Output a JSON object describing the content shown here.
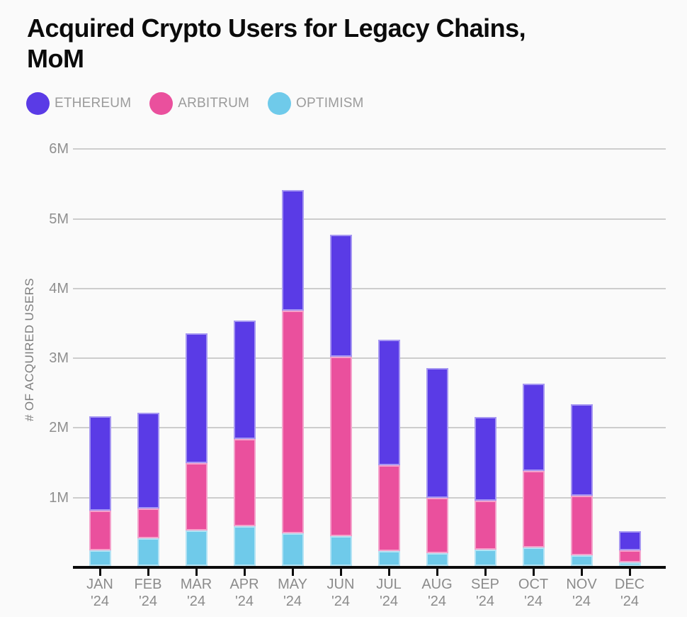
{
  "header": {
    "title": "Acquired Crypto Users for Legacy Chains, MoM"
  },
  "colors": {
    "background": "#fafafa",
    "title_text": "#0b0b0b",
    "legend_text": "#9b9b9b",
    "axis_tick_text": "#8b8b8b",
    "y_axis_title_text": "#7e7e7e",
    "gridline": "#cdcdcd",
    "axis_line": "#0b0b0b",
    "ethereum": "#5a3be6",
    "arbitrum": "#ea509d",
    "optimism": "#6fcaea"
  },
  "chart_data": {
    "type": "bar",
    "stacked": true,
    "title": "Acquired Crypto Users for Legacy Chains, MoM",
    "ylabel": "# OF ACQUIRED USERS",
    "xlabel": "",
    "ylim": [
      0,
      6000000
    ],
    "grid": "horizontal",
    "legend_position": "top-left",
    "value_units": "millions of users",
    "categories": [
      "JAN",
      "FEB",
      "MAR",
      "APR",
      "MAY",
      "JUN",
      "JUL",
      "AUG",
      "SEP",
      "OCT",
      "NOV",
      "DEC"
    ],
    "category_year_suffix": "'24",
    "yticks": [
      {
        "label": "1M",
        "value": 1
      },
      {
        "label": "2M",
        "value": 2
      },
      {
        "label": "3M",
        "value": 3
      },
      {
        "label": "4M",
        "value": 4
      },
      {
        "label": "5M",
        "value": 5
      },
      {
        "label": "6M",
        "value": 6
      }
    ],
    "series": [
      {
        "name": "ETHEREUM",
        "color": "#5a3be6",
        "color_light": "#a697f2",
        "values_millions": [
          1.36,
          1.38,
          1.87,
          1.7,
          1.73,
          1.75,
          1.81,
          1.86,
          1.2,
          1.25,
          1.31,
          0.28
        ]
      },
      {
        "name": "ARBITRUM",
        "color": "#ea509d",
        "color_light": "#f4a2cb",
        "values_millions": [
          0.57,
          0.42,
          0.96,
          1.25,
          3.19,
          2.57,
          1.23,
          0.8,
          0.71,
          1.1,
          0.86,
          0.17
        ]
      },
      {
        "name": "OPTIMISM",
        "color": "#6fcaea",
        "color_light": "#b4e3f4",
        "values_millions": [
          0.22,
          0.4,
          0.51,
          0.57,
          0.47,
          0.43,
          0.21,
          0.18,
          0.23,
          0.26,
          0.15,
          0.05
        ]
      }
    ],
    "stack_order_bottom_to_top": [
      "OPTIMISM",
      "ARBITRUM",
      "ETHEREUM"
    ],
    "totals_millions": [
      2.15,
      2.2,
      3.34,
      3.52,
      5.39,
      4.75,
      3.25,
      2.84,
      2.14,
      2.61,
      2.32,
      0.5
    ]
  }
}
